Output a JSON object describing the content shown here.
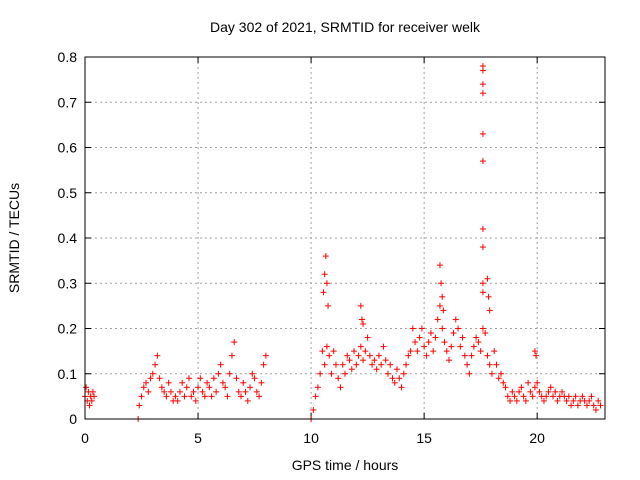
{
  "chart_data": {
    "type": "scatter",
    "title": "Day 302 of 2021, SRMTID for receiver welk",
    "xlabel": "GPS time / hours",
    "ylabel": "SRMTID / TECUs",
    "xlim": [
      0,
      23
    ],
    "ylim": [
      0,
      0.8
    ],
    "xticks": [
      0,
      5,
      10,
      15,
      20
    ],
    "xtick_labels": [
      "0",
      "5",
      "10",
      "15",
      "20"
    ],
    "yticks": [
      0,
      0.1,
      0.2,
      0.3,
      0.4,
      0.5,
      0.6,
      0.7,
      0.8
    ],
    "ytick_labels": [
      "0",
      "0.1",
      "0.2",
      "0.3",
      "0.4",
      "0.5",
      "0.6",
      "0.7",
      "0.8"
    ],
    "grid": true,
    "marker": "+",
    "color": "#ff0000",
    "series": [
      {
        "name": "SRMTID",
        "x": [
          0.0,
          0.05,
          0.1,
          0.15,
          0.2,
          0.25,
          0.3,
          0.35,
          0.4,
          2.4,
          2.5,
          2.6,
          2.7,
          2.8,
          2.9,
          3.0,
          3.1,
          3.2,
          3.3,
          3.4,
          3.5,
          3.6,
          3.7,
          3.8,
          3.9,
          4.0,
          4.1,
          4.2,
          4.3,
          4.4,
          4.5,
          4.6,
          4.7,
          4.8,
          4.9,
          5.0,
          5.1,
          5.2,
          5.3,
          5.4,
          5.5,
          5.6,
          5.7,
          5.8,
          5.9,
          6.0,
          6.1,
          6.2,
          6.3,
          6.4,
          6.5,
          6.6,
          6.7,
          6.8,
          6.9,
          7.0,
          7.1,
          7.2,
          7.3,
          7.4,
          7.5,
          7.6,
          7.7,
          7.8,
          7.9,
          8.0,
          10.1,
          10.2,
          10.3,
          10.4,
          10.5,
          10.6,
          10.7,
          10.8,
          10.9,
          11.0,
          11.1,
          11.2,
          11.3,
          11.4,
          11.5,
          11.6,
          11.7,
          11.8,
          11.9,
          12.0,
          12.1,
          12.2,
          12.3,
          12.4,
          12.5,
          12.6,
          12.7,
          12.8,
          12.9,
          13.0,
          13.1,
          13.2,
          13.3,
          13.4,
          13.5,
          13.6,
          13.7,
          13.8,
          13.9,
          14.0,
          14.1,
          14.2,
          14.3,
          14.4,
          14.5,
          14.6,
          14.7,
          14.8,
          14.9,
          15.0,
          15.1,
          15.2,
          15.3,
          15.4,
          15.5,
          15.6,
          15.7,
          15.8,
          15.9,
          16.0,
          16.1,
          16.2,
          16.3,
          16.4,
          16.5,
          16.6,
          16.7,
          16.8,
          16.9,
          17.0,
          17.1,
          17.2,
          17.3,
          17.4,
          17.5,
          17.6,
          17.7,
          17.8,
          17.9,
          18.0,
          18.1,
          18.2,
          18.3,
          18.4,
          18.5,
          18.6,
          18.7,
          18.8,
          18.9,
          19.0,
          19.1,
          19.2,
          19.3,
          19.4,
          19.5,
          19.6,
          19.7,
          19.8,
          19.9,
          20.0,
          20.1,
          20.2,
          20.3,
          20.4,
          20.5,
          20.6,
          20.7,
          20.8,
          20.9,
          21.0,
          21.1,
          21.2,
          21.3,
          21.4,
          21.5,
          21.6,
          21.7,
          21.8,
          21.9,
          22.0,
          22.1,
          22.2,
          22.3,
          22.4,
          22.5,
          22.6,
          22.7,
          22.8,
          2.35,
          10.0,
          10.55,
          10.6,
          10.65,
          10.7,
          10.75,
          12.2,
          12.25,
          12.3,
          15.7,
          15.75,
          15.8,
          15.85,
          17.6,
          17.6,
          17.6,
          17.6,
          17.6,
          17.6,
          17.6,
          17.6,
          17.6,
          17.6,
          17.8,
          17.85,
          17.9,
          19.9,
          19.95
        ],
        "y": [
          0.05,
          0.07,
          0.04,
          0.06,
          0.03,
          0.05,
          0.04,
          0.06,
          0.05,
          0.03,
          0.05,
          0.07,
          0.08,
          0.06,
          0.09,
          0.1,
          0.12,
          0.14,
          0.09,
          0.07,
          0.06,
          0.05,
          0.08,
          0.06,
          0.04,
          0.05,
          0.04,
          0.06,
          0.08,
          0.05,
          0.07,
          0.09,
          0.05,
          0.06,
          0.04,
          0.07,
          0.09,
          0.06,
          0.05,
          0.08,
          0.07,
          0.05,
          0.09,
          0.06,
          0.1,
          0.12,
          0.08,
          0.07,
          0.05,
          0.1,
          0.14,
          0.17,
          0.09,
          0.06,
          0.05,
          0.08,
          0.06,
          0.04,
          0.07,
          0.1,
          0.09,
          0.06,
          0.05,
          0.08,
          0.12,
          0.14,
          0.02,
          0.05,
          0.07,
          0.1,
          0.15,
          0.12,
          0.16,
          0.14,
          0.1,
          0.15,
          0.12,
          0.09,
          0.07,
          0.12,
          0.1,
          0.14,
          0.13,
          0.11,
          0.15,
          0.12,
          0.14,
          0.16,
          0.13,
          0.15,
          0.18,
          0.14,
          0.12,
          0.13,
          0.11,
          0.14,
          0.12,
          0.16,
          0.13,
          0.1,
          0.12,
          0.09,
          0.08,
          0.11,
          0.09,
          0.07,
          0.1,
          0.12,
          0.14,
          0.15,
          0.2,
          0.17,
          0.15,
          0.18,
          0.2,
          0.16,
          0.14,
          0.17,
          0.19,
          0.15,
          0.18,
          0.22,
          0.25,
          0.2,
          0.17,
          0.15,
          0.13,
          0.16,
          0.19,
          0.22,
          0.2,
          0.16,
          0.18,
          0.14,
          0.12,
          0.1,
          0.14,
          0.16,
          0.18,
          0.17,
          0.15,
          0.2,
          0.19,
          0.14,
          0.12,
          0.1,
          0.15,
          0.12,
          0.09,
          0.1,
          0.08,
          0.07,
          0.05,
          0.04,
          0.06,
          0.05,
          0.04,
          0.06,
          0.07,
          0.05,
          0.04,
          0.08,
          0.06,
          0.05,
          0.07,
          0.08,
          0.06,
          0.05,
          0.04,
          0.05,
          0.06,
          0.07,
          0.05,
          0.06,
          0.04,
          0.05,
          0.06,
          0.05,
          0.04,
          0.05,
          0.03,
          0.04,
          0.05,
          0.03,
          0.04,
          0.05,
          0.04,
          0.03,
          0.04,
          0.05,
          0.03,
          0.02,
          0.04,
          0.03,
          0.0,
          0.0,
          0.28,
          0.32,
          0.36,
          0.3,
          0.25,
          0.25,
          0.22,
          0.21,
          0.34,
          0.3,
          0.27,
          0.24,
          0.78,
          0.77,
          0.74,
          0.72,
          0.63,
          0.57,
          0.42,
          0.38,
          0.3,
          0.28,
          0.31,
          0.27,
          0.24,
          0.15,
          0.14
        ]
      }
    ]
  }
}
